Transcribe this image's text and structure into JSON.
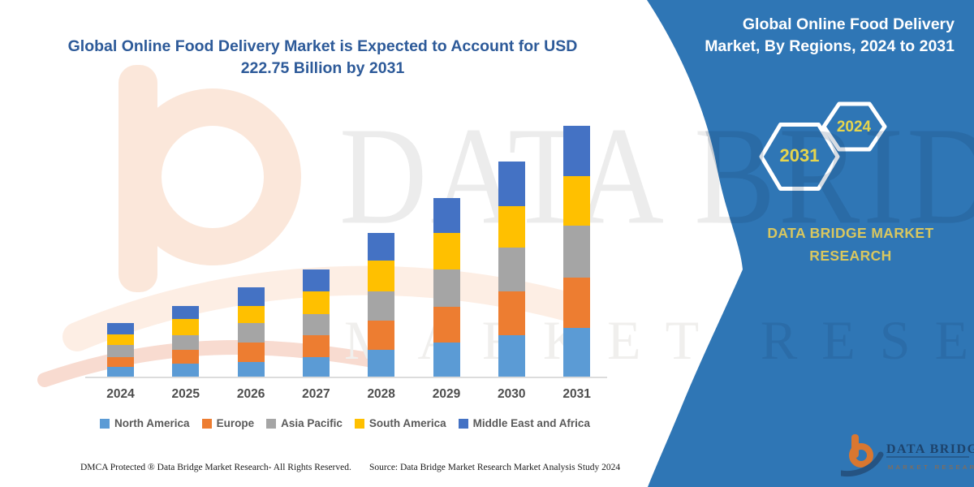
{
  "left": {
    "title_line1": "Global Online Food Delivery Market is Expected to Account for USD",
    "title_line2": "222.75 Billion by 2031",
    "footer_left": "DMCA Protected ® Data Bridge Market Research-  All Rights Reserved.",
    "footer_source": "Source: Data Bridge Market Research  Market Analysis Study 2024"
  },
  "panel": {
    "title_line1": "Global Online Food Delivery",
    "title_line2": "Market, By Regions, 2024 to 2031",
    "hexagon_large_year": "2031",
    "hexagon_small_year": "2024",
    "brand_line1": "DATA BRIDGE MARKET",
    "brand_line2": "RESEARCH",
    "corner_logo_text": "DATA BRIDGE",
    "corner_logo_subtext": "MARKET RESEARCH",
    "bg_color": "#2F76B5",
    "accent_yellow": "#D9C75F"
  },
  "watermark": {
    "text_top": "DATA BRIDGE",
    "text_bottom": "MARKET RESEARCH"
  },
  "chart_data": {
    "type": "bar",
    "stacked": true,
    "title": "Global Online Food Delivery Market is Expected to Account for USD 222.75 Billion by 2031",
    "unit": "USD Billion",
    "categories": [
      "2024",
      "2025",
      "2026",
      "2027",
      "2028",
      "2029",
      "2030",
      "2031"
    ],
    "series": [
      {
        "name": "North America",
        "color": "#5B9BD5",
        "values": [
          9.1,
          12.4,
          13.7,
          18.2,
          24.4,
          30.9,
          37.1,
          43.6
        ]
      },
      {
        "name": "Europe",
        "color": "#ED7D31",
        "values": [
          8.9,
          12.2,
          17.0,
          19.4,
          26.1,
          31.8,
          38.8,
          45.0
        ]
      },
      {
        "name": "Asia Pacific",
        "color": "#A5A5A5",
        "values": [
          10.8,
          13.1,
          17.7,
          18.5,
          25.4,
          32.8,
          39.0,
          45.5
        ]
      },
      {
        "name": "South America",
        "color": "#FFC000",
        "values": [
          9.6,
          13.7,
          15.1,
          19.9,
          27.5,
          32.6,
          36.4,
          44.1
        ]
      },
      {
        "name": "Middle East and Africa",
        "color": "#4472C4",
        "values": [
          10.0,
          11.5,
          16.0,
          19.6,
          24.4,
          30.4,
          39.5,
          44.55
        ]
      }
    ],
    "totals_estimated": [
      48.4,
      62.9,
      79.5,
      95.6,
      127.8,
      158.5,
      190.8,
      222.75
    ],
    "ylim": [
      0,
      230
    ],
    "grid": false,
    "legend_position": "bottom",
    "value_axis_visible": false
  }
}
